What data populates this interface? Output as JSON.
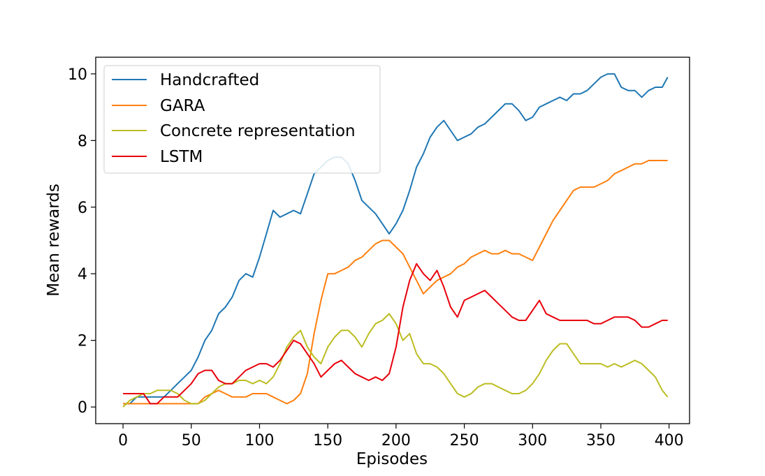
{
  "chart_data": {
    "type": "line",
    "title": "",
    "xlabel": "Episodes",
    "ylabel": "Mean rewards",
    "xlim": [
      -20,
      415
    ],
    "ylim": [
      -0.5,
      10.5
    ],
    "xticks": [
      0,
      50,
      100,
      150,
      200,
      250,
      300,
      350,
      400
    ],
    "yticks": [
      0,
      2,
      4,
      6,
      8,
      10
    ],
    "grid": false,
    "legend_position": "upper-left",
    "series": [
      {
        "name": "Handcrafted",
        "color": "#1f77b4",
        "x": [
          0,
          5,
          10,
          15,
          20,
          25,
          30,
          35,
          40,
          45,
          50,
          55,
          60,
          65,
          70,
          75,
          80,
          85,
          90,
          95,
          100,
          105,
          110,
          115,
          120,
          125,
          130,
          135,
          140,
          145,
          150,
          155,
          160,
          165,
          170,
          175,
          180,
          185,
          190,
          195,
          200,
          205,
          210,
          215,
          220,
          225,
          230,
          235,
          240,
          245,
          250,
          255,
          260,
          265,
          270,
          275,
          280,
          285,
          290,
          295,
          300,
          305,
          310,
          315,
          320,
          325,
          330,
          335,
          340,
          345,
          350,
          355,
          360,
          365,
          370,
          375,
          380,
          385,
          390,
          395,
          399
        ],
        "values": [
          0.1,
          0.1,
          0.3,
          0.3,
          0.3,
          0.3,
          0.3,
          0.5,
          0.7,
          0.9,
          1.1,
          1.5,
          2.0,
          2.3,
          2.8,
          3.0,
          3.3,
          3.8,
          4.0,
          3.9,
          4.5,
          5.2,
          5.9,
          5.7,
          5.8,
          5.9,
          5.8,
          6.4,
          7.0,
          7.2,
          7.4,
          7.5,
          7.5,
          7.3,
          6.8,
          6.2,
          6.0,
          5.8,
          5.5,
          5.2,
          5.5,
          5.9,
          6.5,
          7.2,
          7.6,
          8.1,
          8.4,
          8.6,
          8.3,
          8.0,
          8.1,
          8.2,
          8.4,
          8.5,
          8.7,
          8.9,
          9.1,
          9.1,
          8.9,
          8.6,
          8.7,
          9.0,
          9.1,
          9.2,
          9.3,
          9.2,
          9.4,
          9.4,
          9.5,
          9.7,
          9.9,
          10.0,
          10.0,
          9.6,
          9.5,
          9.5,
          9.3,
          9.5,
          9.6,
          9.6,
          9.9
        ]
      },
      {
        "name": "GARA",
        "color": "#ff7f0e",
        "x": [
          0,
          5,
          10,
          15,
          20,
          25,
          30,
          35,
          40,
          45,
          50,
          55,
          60,
          65,
          70,
          75,
          80,
          85,
          90,
          95,
          100,
          105,
          110,
          115,
          120,
          125,
          130,
          135,
          140,
          145,
          150,
          155,
          160,
          165,
          170,
          175,
          180,
          185,
          190,
          195,
          200,
          205,
          210,
          215,
          220,
          225,
          230,
          235,
          240,
          245,
          250,
          255,
          260,
          265,
          270,
          275,
          280,
          285,
          290,
          295,
          300,
          305,
          310,
          315,
          320,
          325,
          330,
          335,
          340,
          345,
          350,
          355,
          360,
          365,
          370,
          375,
          380,
          385,
          390,
          395,
          399
        ],
        "values": [
          0.1,
          0.1,
          0.1,
          0.1,
          0.1,
          0.1,
          0.1,
          0.1,
          0.1,
          0.1,
          0.1,
          0.1,
          0.3,
          0.4,
          0.5,
          0.4,
          0.3,
          0.3,
          0.3,
          0.4,
          0.4,
          0.4,
          0.3,
          0.2,
          0.1,
          0.2,
          0.4,
          1.0,
          2.2,
          3.2,
          4.0,
          4.0,
          4.1,
          4.2,
          4.4,
          4.5,
          4.7,
          4.9,
          5.0,
          5.0,
          4.8,
          4.6,
          4.2,
          3.8,
          3.4,
          3.6,
          3.8,
          3.9,
          4.0,
          4.2,
          4.3,
          4.5,
          4.6,
          4.7,
          4.6,
          4.6,
          4.7,
          4.6,
          4.6,
          4.5,
          4.4,
          4.8,
          5.2,
          5.6,
          5.9,
          6.2,
          6.5,
          6.6,
          6.6,
          6.6,
          6.7,
          6.8,
          7.0,
          7.1,
          7.2,
          7.3,
          7.3,
          7.4,
          7.4,
          7.4,
          7.4
        ]
      },
      {
        "name": "Concrete representation",
        "color": "#bcbd22",
        "x": [
          0,
          5,
          10,
          15,
          20,
          25,
          30,
          35,
          40,
          45,
          50,
          55,
          60,
          65,
          70,
          75,
          80,
          85,
          90,
          95,
          100,
          105,
          110,
          115,
          120,
          125,
          130,
          135,
          140,
          145,
          150,
          155,
          160,
          165,
          170,
          175,
          180,
          185,
          190,
          195,
          200,
          205,
          210,
          215,
          220,
          225,
          230,
          235,
          240,
          245,
          250,
          255,
          260,
          265,
          270,
          275,
          280,
          285,
          290,
          295,
          300,
          305,
          310,
          315,
          320,
          325,
          330,
          335,
          340,
          345,
          350,
          355,
          360,
          365,
          370,
          375,
          380,
          385,
          390,
          395,
          399
        ],
        "values": [
          0.0,
          0.2,
          0.3,
          0.4,
          0.4,
          0.5,
          0.5,
          0.5,
          0.4,
          0.2,
          0.1,
          0.1,
          0.2,
          0.4,
          0.6,
          0.7,
          0.7,
          0.8,
          0.8,
          0.7,
          0.8,
          0.7,
          0.9,
          1.3,
          1.8,
          2.1,
          2.3,
          1.8,
          1.5,
          1.3,
          1.8,
          2.1,
          2.3,
          2.3,
          2.1,
          1.8,
          2.2,
          2.5,
          2.6,
          2.8,
          2.5,
          2.0,
          2.2,
          1.6,
          1.3,
          1.3,
          1.2,
          1.0,
          0.7,
          0.4,
          0.3,
          0.4,
          0.6,
          0.7,
          0.7,
          0.6,
          0.5,
          0.4,
          0.4,
          0.5,
          0.7,
          1.0,
          1.4,
          1.7,
          1.9,
          1.9,
          1.6,
          1.3,
          1.3,
          1.3,
          1.3,
          1.2,
          1.3,
          1.2,
          1.3,
          1.4,
          1.3,
          1.1,
          0.9,
          0.5,
          0.3
        ]
      },
      {
        "name": "LSTM",
        "color": "#e8000b",
        "x": [
          0,
          5,
          10,
          15,
          20,
          25,
          30,
          35,
          40,
          45,
          50,
          55,
          60,
          65,
          70,
          75,
          80,
          85,
          90,
          95,
          100,
          105,
          110,
          115,
          120,
          125,
          130,
          135,
          140,
          145,
          150,
          155,
          160,
          165,
          170,
          175,
          180,
          185,
          190,
          195,
          200,
          205,
          210,
          215,
          220,
          225,
          230,
          235,
          240,
          245,
          250,
          255,
          260,
          265,
          270,
          275,
          280,
          285,
          290,
          295,
          300,
          305,
          310,
          315,
          320,
          325,
          330,
          335,
          340,
          345,
          350,
          355,
          360,
          365,
          370,
          375,
          380,
          385,
          390,
          395,
          399
        ],
        "values": [
          0.4,
          0.4,
          0.4,
          0.4,
          0.1,
          0.1,
          0.3,
          0.3,
          0.3,
          0.5,
          0.7,
          1.0,
          1.1,
          1.1,
          0.8,
          0.7,
          0.7,
          0.9,
          1.1,
          1.2,
          1.3,
          1.3,
          1.2,
          1.4,
          1.7,
          2.0,
          1.9,
          1.6,
          1.3,
          0.9,
          1.1,
          1.3,
          1.4,
          1.2,
          1.0,
          0.9,
          0.8,
          0.9,
          0.8,
          1.0,
          1.8,
          3.0,
          3.8,
          4.3,
          4.0,
          3.8,
          4.1,
          3.6,
          3.0,
          2.7,
          3.2,
          3.3,
          3.4,
          3.5,
          3.3,
          3.1,
          2.9,
          2.7,
          2.6,
          2.6,
          2.9,
          3.2,
          2.8,
          2.7,
          2.6,
          2.6,
          2.6,
          2.6,
          2.6,
          2.5,
          2.5,
          2.6,
          2.7,
          2.7,
          2.7,
          2.6,
          2.4,
          2.4,
          2.5,
          2.6,
          2.6
        ]
      }
    ]
  }
}
